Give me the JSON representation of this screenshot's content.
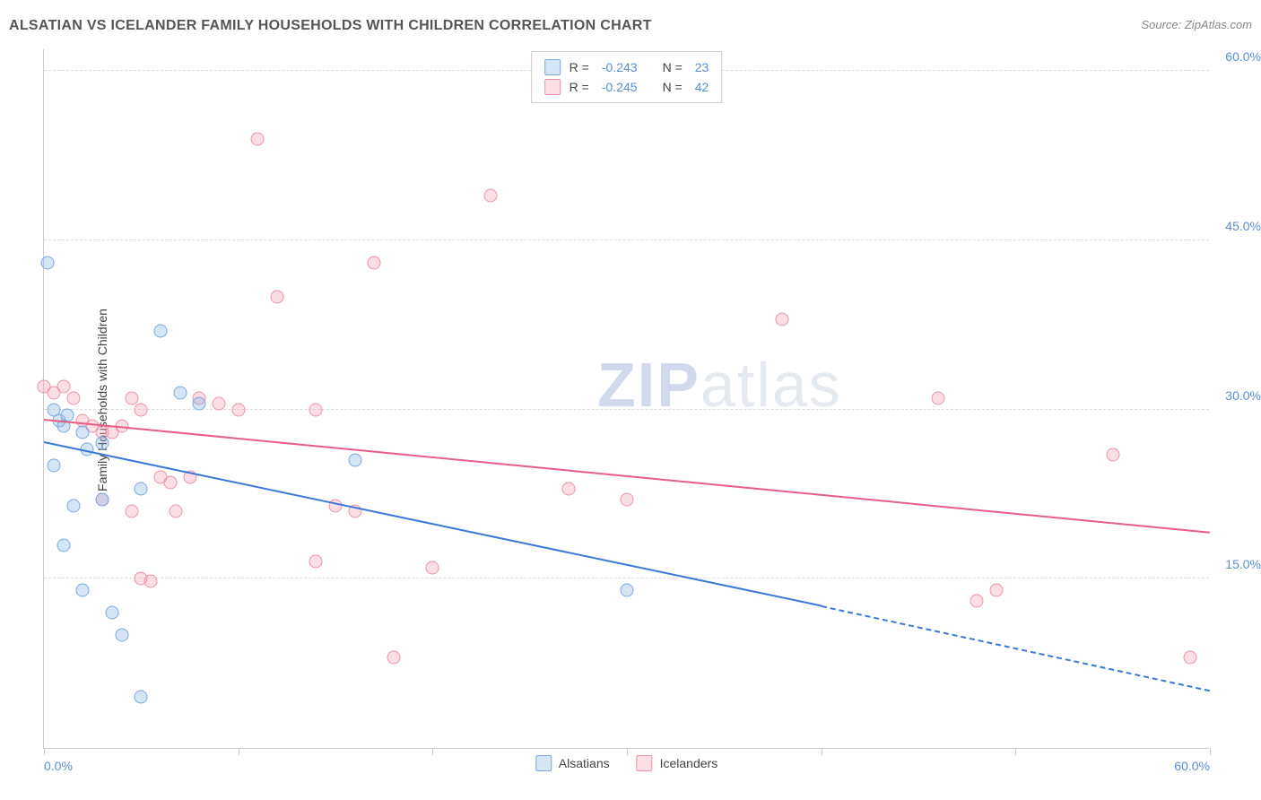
{
  "header": {
    "title": "ALSATIAN VS ICELANDER FAMILY HOUSEHOLDS WITH CHILDREN CORRELATION CHART",
    "source": "Source: ZipAtlas.com"
  },
  "watermark": {
    "zip": "ZIP",
    "atlas": "atlas"
  },
  "chart": {
    "type": "scatter",
    "ylabel": "Family Households with Children",
    "xlim": [
      0,
      60
    ],
    "ylim": [
      0,
      62
    ],
    "yticks": [
      15,
      30,
      45,
      60
    ],
    "ytick_labels": [
      "15.0%",
      "30.0%",
      "45.0%",
      "60.0%"
    ],
    "xticks": [
      0,
      10,
      20,
      30,
      40,
      50,
      60
    ],
    "xtick_labels_shown": {
      "0": "0.0%",
      "60": "60.0%"
    },
    "grid_color": "#dddddd",
    "background_color": "#ffffff",
    "axis_color": "#cccccc",
    "label_color": "#5a8fd6",
    "point_radius": 7.5
  },
  "series": {
    "alsatians": {
      "label": "Alsatians",
      "fill": "rgba(138,180,230,0.35)",
      "stroke": "#7aa8e0",
      "line_color": "#3b78d6",
      "R": "-0.243",
      "N": "23",
      "trend": {
        "x1": 0,
        "y1": 27,
        "x2": 40,
        "y2": 12.5,
        "dash_after_x": 40,
        "x2d": 60,
        "y2d": 5
      },
      "points": [
        [
          0.2,
          43
        ],
        [
          0.5,
          30
        ],
        [
          0.8,
          29
        ],
        [
          1,
          28.5
        ],
        [
          0.5,
          25
        ],
        [
          1.2,
          29.5
        ],
        [
          2,
          28
        ],
        [
          2.2,
          26.5
        ],
        [
          1.5,
          21.5
        ],
        [
          3,
          27
        ],
        [
          3,
          22
        ],
        [
          5,
          23
        ],
        [
          6,
          37
        ],
        [
          7,
          31.5
        ],
        [
          8,
          30.5
        ],
        [
          1,
          18
        ],
        [
          2,
          14
        ],
        [
          3.5,
          12
        ],
        [
          4,
          10
        ],
        [
          5,
          4.5
        ],
        [
          16,
          25.5
        ],
        [
          30,
          14
        ]
      ]
    },
    "icelanders": {
      "label": "Icelanders",
      "fill": "rgba(245,160,180,0.35)",
      "stroke": "#ec91a8",
      "line_color": "#e85d86",
      "R": "-0.245",
      "N": "42",
      "trend": {
        "x1": 0,
        "y1": 29,
        "x2": 60,
        "y2": 19
      },
      "points": [
        [
          0,
          32
        ],
        [
          0.5,
          31.5
        ],
        [
          1,
          32
        ],
        [
          1.5,
          31
        ],
        [
          2,
          29
        ],
        [
          2.5,
          28.5
        ],
        [
          3,
          28
        ],
        [
          3.5,
          28
        ],
        [
          4,
          28.5
        ],
        [
          4.5,
          31
        ],
        [
          5,
          30
        ],
        [
          6,
          24
        ],
        [
          6.5,
          23.5
        ],
        [
          6.8,
          21
        ],
        [
          7.5,
          24
        ],
        [
          8,
          31
        ],
        [
          9,
          30.5
        ],
        [
          10,
          30
        ],
        [
          3,
          22
        ],
        [
          4.5,
          21
        ],
        [
          5,
          15
        ],
        [
          5.5,
          14.8
        ],
        [
          11,
          54
        ],
        [
          12,
          40
        ],
        [
          14,
          30
        ],
        [
          17,
          43
        ],
        [
          14,
          16.5
        ],
        [
          15,
          21.5
        ],
        [
          16,
          21
        ],
        [
          18,
          8
        ],
        [
          20,
          16
        ],
        [
          23,
          49
        ],
        [
          27,
          23
        ],
        [
          30,
          22
        ],
        [
          38,
          38
        ],
        [
          46,
          31
        ],
        [
          49,
          14
        ],
        [
          48,
          13
        ],
        [
          55,
          26
        ],
        [
          59,
          8
        ]
      ]
    }
  }
}
